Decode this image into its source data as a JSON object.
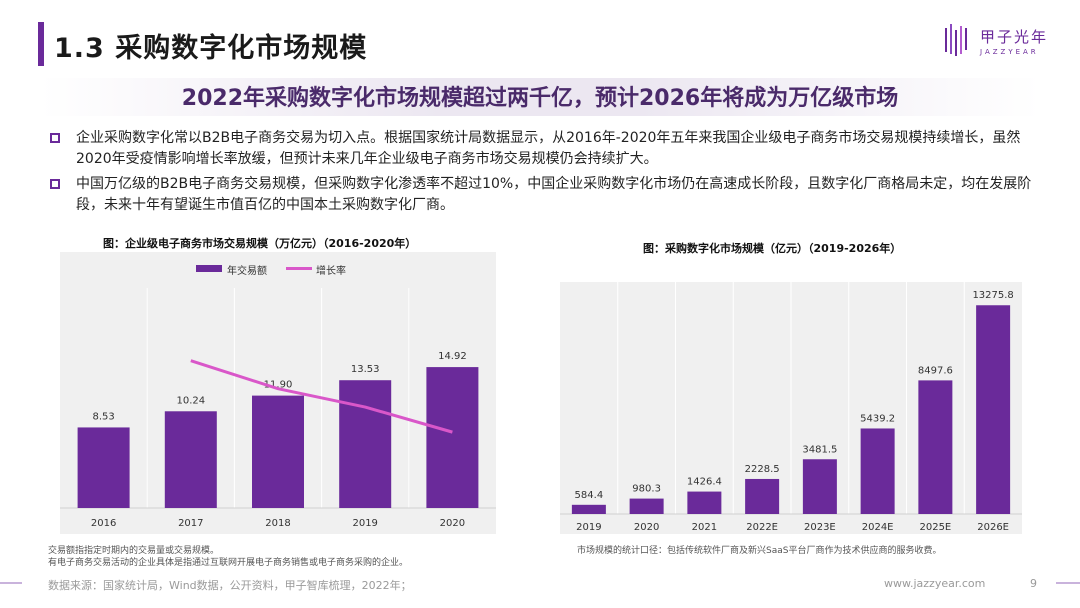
{
  "header": {
    "section_title": "1.3 采购数字化市场规模",
    "logo_name": "甲子光年",
    "logo_sub": "JAZZYEAR"
  },
  "headline": "2022年采购数字化市场规模超过两千亿，预计2026年将成为万亿级市场",
  "bullets": [
    "企业采购数字化常以B2B电子商务交易为切入点。根据国家统计局数据显示，从2016年-2020年五年来我国企业级电子商务市场交易规模持续增长，虽然2020年受疫情影响增长率放缓，但预计未来几年企业级电子商务市场交易规模仍会持续扩大。",
    "中国万亿级的B2B电子商务交易规模，但采购数字化渗透率不超过10%，中国企业采购数字化市场仍在高速成长阶段，且数字化厂商格局未定，均在发展阶段，未来十年有望诞生市值百亿的中国本土采购数字化厂商。"
  ],
  "colors": {
    "accent": "#6a2a9a",
    "bar": "#6a2a9a",
    "line": "#d957c9",
    "panel": "#f0f0f0"
  },
  "chart_data": [
    {
      "type": "bar",
      "title": "图：企业级电子商务市场交易规模（万亿元）（2016-2020年）",
      "categories": [
        "2016",
        "2017",
        "2018",
        "2019",
        "2020"
      ],
      "series": [
        {
          "name": "年交易额",
          "values": [
            8.53,
            10.24,
            11.9,
            13.53,
            14.92
          ]
        },
        {
          "name": "增长率",
          "type": "line",
          "values": [
            null,
            20.0,
            16.2,
            13.7,
            10.3
          ]
        }
      ],
      "data_labels": [
        "8.53",
        "10.24",
        "11.90",
        "13.53",
        "14.92"
      ],
      "ylim": [
        0,
        18
      ],
      "line_ylim": [
        0,
        30
      ],
      "notes": [
        "交易额指指定时期内的交易量或交易规模。",
        "有电子商务交易活动的企业具体是指通过互联网开展电子商务销售或电子商务采购的企业。"
      ]
    },
    {
      "type": "bar",
      "title": "图：采购数字化市场规模（亿元）（2019-2026年）",
      "categories": [
        "2019",
        "2020",
        "2021",
        "2022E",
        "2023E",
        "2024E",
        "2025E",
        "2026E"
      ],
      "values": [
        584.4,
        980.3,
        1426.4,
        2228.5,
        3481.5,
        5439.2,
        8497.6,
        13275.8
      ],
      "data_labels": [
        "584.4",
        "980.3",
        "1426.4",
        "2228.5",
        "3481.5",
        "5439.2",
        "8497.6",
        "13275.8"
      ],
      "ylim": [
        0,
        14500
      ],
      "notes": [
        "市场规模的统计口径：包括传统软件厂商及新兴SaaS平台厂商作为技术供应商的服务收费。"
      ]
    }
  ],
  "footer": {
    "source": "数据来源：国家统计局，Wind数据，公开资料，甲子智库梳理，2022年；",
    "url": "www.jazzyear.com",
    "page": "9"
  }
}
